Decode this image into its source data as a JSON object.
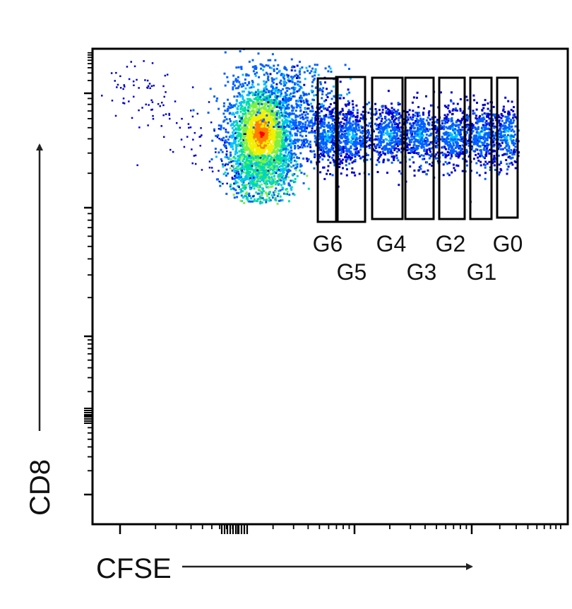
{
  "chart_data": {
    "type": "scatter",
    "subtype": "flow-cytometry density dot plot",
    "xlabel": "CFSE",
    "ylabel": "CD8",
    "x_scale": "log",
    "y_scale": "log",
    "grid": false,
    "legend": "none",
    "colormap": [
      "#0000d0",
      "#0060ff",
      "#00c0ff",
      "#00e0a0",
      "#80f040",
      "#f0f000",
      "#ff8000",
      "#ff0000"
    ],
    "populations": [
      {
        "name": "undivided-peak",
        "cfse": 0.22,
        "cd8": 0.57,
        "relative_density": 1.0
      }
    ],
    "gates": [
      {
        "label": "G6",
        "label_row": "top"
      },
      {
        "label": "G5",
        "label_row": "bottom"
      },
      {
        "label": "G4",
        "label_row": "top"
      },
      {
        "label": "G3",
        "label_row": "bottom"
      },
      {
        "label": "G2",
        "label_row": "top"
      },
      {
        "label": "G1",
        "label_row": "bottom"
      },
      {
        "label": "G0",
        "label_row": "top"
      }
    ]
  }
}
